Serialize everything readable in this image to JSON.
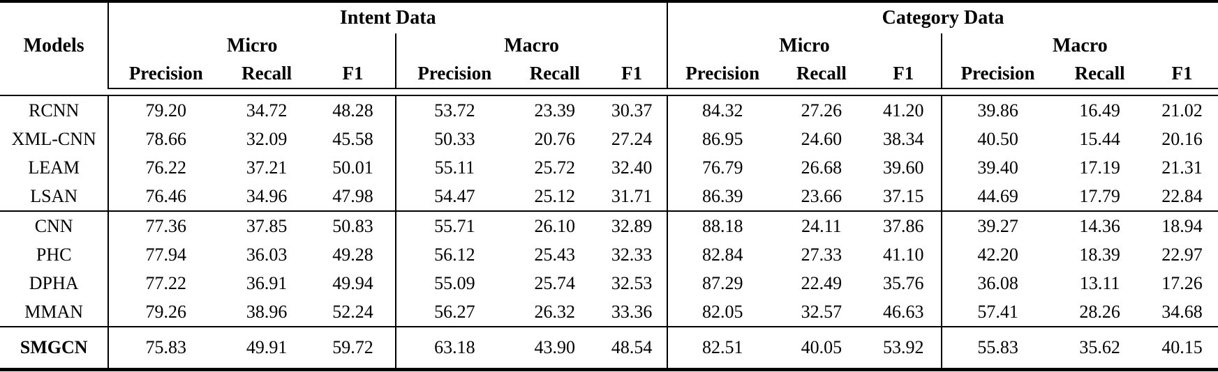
{
  "colors": {
    "text": "#000000",
    "background": "#ffffff",
    "rule": "#000000"
  },
  "header": {
    "models_label": "Models",
    "datasets": [
      {
        "label": "Intent Data",
        "subgroups": [
          {
            "label": "Micro",
            "metrics": [
              "Precision",
              "Recall",
              "F1"
            ]
          },
          {
            "label": "Macro",
            "metrics": [
              "Precision",
              "Recall",
              "F1"
            ]
          }
        ]
      },
      {
        "label": "Category Data",
        "subgroups": [
          {
            "label": "Micro",
            "metrics": [
              "Precision",
              "Recall",
              "F1"
            ]
          },
          {
            "label": "Macro",
            "metrics": [
              "Precision",
              "Recall",
              "F1"
            ]
          }
        ]
      }
    ]
  },
  "body": {
    "row_groups": [
      {
        "rows": [
          {
            "model": "RCNN",
            "bold": false,
            "values": [
              "79.20",
              "34.72",
              "48.28",
              "53.72",
              "23.39",
              "30.37",
              "84.32",
              "27.26",
              "41.20",
              "39.86",
              "16.49",
              "21.02"
            ]
          },
          {
            "model": "XML-CNN",
            "bold": false,
            "values": [
              "78.66",
              "32.09",
              "45.58",
              "50.33",
              "20.76",
              "27.24",
              "86.95",
              "24.60",
              "38.34",
              "40.50",
              "15.44",
              "20.16"
            ]
          },
          {
            "model": "LEAM",
            "bold": false,
            "values": [
              "76.22",
              "37.21",
              "50.01",
              "55.11",
              "25.72",
              "32.40",
              "76.79",
              "26.68",
              "39.60",
              "39.40",
              "17.19",
              "21.31"
            ]
          },
          {
            "model": "LSAN",
            "bold": false,
            "values": [
              "76.46",
              "34.96",
              "47.98",
              "54.47",
              "25.12",
              "31.71",
              "86.39",
              "23.66",
              "37.15",
              "44.69",
              "17.79",
              "22.84"
            ]
          }
        ]
      },
      {
        "rows": [
          {
            "model": "CNN",
            "bold": false,
            "values": [
              "77.36",
              "37.85",
              "50.83",
              "55.71",
              "26.10",
              "32.89",
              "88.18",
              "24.11",
              "37.86",
              "39.27",
              "14.36",
              "18.94"
            ]
          },
          {
            "model": "PHC",
            "bold": false,
            "values": [
              "77.94",
              "36.03",
              "49.28",
              "56.12",
              "25.43",
              "32.33",
              "82.84",
              "27.33",
              "41.10",
              "42.20",
              "18.39",
              "22.97"
            ]
          },
          {
            "model": "DPHA",
            "bold": false,
            "values": [
              "77.22",
              "36.91",
              "49.94",
              "55.09",
              "25.74",
              "32.53",
              "87.29",
              "22.49",
              "35.76",
              "36.08",
              "13.11",
              "17.26"
            ]
          },
          {
            "model": "MMAN",
            "bold": false,
            "values": [
              "79.26",
              "38.96",
              "52.24",
              "56.27",
              "26.32",
              "33.36",
              "82.05",
              "32.57",
              "46.63",
              "57.41",
              "28.26",
              "34.68"
            ]
          }
        ]
      },
      {
        "rows": [
          {
            "model": "SMGCN",
            "bold": true,
            "values": [
              "75.83",
              "49.91",
              "59.72",
              "63.18",
              "43.90",
              "48.54",
              "82.51",
              "40.05",
              "53.92",
              "55.83",
              "35.62",
              "40.15"
            ]
          }
        ]
      }
    ]
  }
}
